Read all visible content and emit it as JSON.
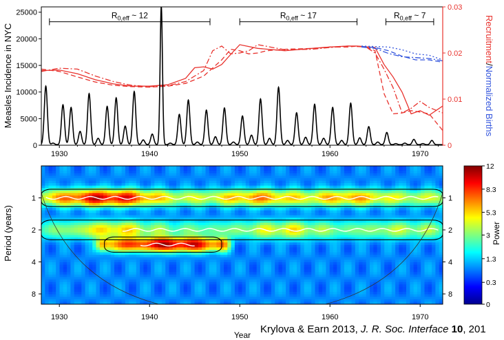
{
  "chart_data": [
    {
      "type": "line",
      "panel": "top",
      "xlim": [
        1928,
        1972.5
      ],
      "x_ticks": [
        "1930",
        "1940",
        "1950",
        "1960",
        "1970"
      ],
      "ylabel_left": "Measles Incidence in NYC",
      "ylim_left": [
        0,
        26000
      ],
      "y_ticks_left": [
        "0",
        "5000",
        "10000",
        "15000",
        "20000",
        "25000"
      ],
      "ylabel_right_parts": [
        {
          "text": "Recruitment",
          "color": "#e8322d"
        },
        {
          "text": "/",
          "color": "#000000"
        },
        {
          "text": "Normalized Births",
          "color": "#3355dd"
        }
      ],
      "ylim_right": [
        0,
        0.03
      ],
      "y_ticks_right": [
        "0",
        "0.01",
        "0.02",
        "0.03"
      ],
      "annotations": [
        {
          "label_main": "R",
          "label_sub": "0,eff",
          "label_rest": " ~ 12",
          "x_start": 1928.9,
          "x_end": 1946.7,
          "y": 23200
        },
        {
          "label_main": "R",
          "label_sub": "0,eff",
          "label_rest": " ~ 17",
          "x_start": 1950,
          "x_end": 1963,
          "y": 23200
        },
        {
          "label_main": "R",
          "label_sub": "0,eff",
          "label_rest": " ~ 7",
          "x_start": 1966.2,
          "x_end": 1971.5,
          "y": 23200
        }
      ],
      "incidence_series": {
        "name": "Measles incidence",
        "color": "#000000",
        "peaks": [
          {
            "x": 1928.5,
            "y": 11000
          },
          {
            "x": 1929.3,
            "y": 300
          },
          {
            "x": 1930.4,
            "y": 7500
          },
          {
            "x": 1931.3,
            "y": 7000
          },
          {
            "x": 1932.3,
            "y": 2500
          },
          {
            "x": 1933.3,
            "y": 9600
          },
          {
            "x": 1934.3,
            "y": 1200
          },
          {
            "x": 1935.3,
            "y": 7200
          },
          {
            "x": 1936.3,
            "y": 8800
          },
          {
            "x": 1937.3,
            "y": 3500
          },
          {
            "x": 1938.3,
            "y": 10000
          },
          {
            "x": 1939.3,
            "y": 900
          },
          {
            "x": 1940.3,
            "y": 2000
          },
          {
            "x": 1941.3,
            "y": 26000
          },
          {
            "x": 1942.3,
            "y": 300
          },
          {
            "x": 1943.3,
            "y": 5700
          },
          {
            "x": 1944.3,
            "y": 8400
          },
          {
            "x": 1945.3,
            "y": 500
          },
          {
            "x": 1946.3,
            "y": 6500
          },
          {
            "x": 1947.3,
            "y": 1500
          },
          {
            "x": 1948.3,
            "y": 6900
          },
          {
            "x": 1949.3,
            "y": 500
          },
          {
            "x": 1950.3,
            "y": 5400
          },
          {
            "x": 1951.3,
            "y": 1800
          },
          {
            "x": 1952.3,
            "y": 8600
          },
          {
            "x": 1953.3,
            "y": 1200
          },
          {
            "x": 1954.3,
            "y": 10800
          },
          {
            "x": 1955.3,
            "y": 800
          },
          {
            "x": 1956.3,
            "y": 6000
          },
          {
            "x": 1957.3,
            "y": 1400
          },
          {
            "x": 1958.3,
            "y": 7600
          },
          {
            "x": 1959.3,
            "y": 1200
          },
          {
            "x": 1960.3,
            "y": 7000
          },
          {
            "x": 1961.3,
            "y": 800
          },
          {
            "x": 1962.3,
            "y": 7800
          },
          {
            "x": 1963.3,
            "y": 1300
          },
          {
            "x": 1964.3,
            "y": 3400
          },
          {
            "x": 1965.3,
            "y": 500
          },
          {
            "x": 1966.3,
            "y": 2300
          },
          {
            "x": 1967.3,
            "y": 200
          },
          {
            "x": 1968.3,
            "y": 300
          },
          {
            "x": 1969.3,
            "y": 1000
          },
          {
            "x": 1970.3,
            "y": 200
          },
          {
            "x": 1971.3,
            "y": 800
          }
        ]
      },
      "recruitment_series": [
        {
          "name": "Recruitment (solid)",
          "color": "#e8322d",
          "dash": "solid",
          "x": [
            1928,
            1930,
            1932,
            1934,
            1936,
            1938,
            1940,
            1942,
            1944,
            1945,
            1946,
            1947,
            1948,
            1949,
            1950,
            1952,
            1955,
            1958,
            1960,
            1962,
            1963,
            1965,
            1966,
            1967,
            1968,
            1969,
            1970,
            1971,
            1972.5
          ],
          "y": [
            0.0162,
            0.0163,
            0.0155,
            0.0142,
            0.0133,
            0.0128,
            0.0128,
            0.0131,
            0.0145,
            0.0168,
            0.017,
            0.0165,
            0.0175,
            0.0197,
            0.0218,
            0.021,
            0.0205,
            0.021,
            0.0213,
            0.0215,
            0.0215,
            0.0212,
            0.0175,
            0.0148,
            0.0115,
            0.0068,
            0.0075,
            0.0065,
            0.0085
          ]
        },
        {
          "name": "Recruitment (dash-dot)",
          "color": "#e8322d",
          "dash": "dashdot",
          "x": [
            1928,
            1930,
            1932,
            1934,
            1936,
            1938,
            1940,
            1942,
            1944,
            1946,
            1947,
            1948,
            1949,
            1950,
            1951,
            1952,
            1955,
            1958,
            1960,
            1962,
            1964,
            1965,
            1966,
            1967,
            1968,
            1969,
            1970,
            1971,
            1972.5
          ],
          "y": [
            0.016,
            0.0167,
            0.0165,
            0.015,
            0.0138,
            0.013,
            0.0127,
            0.0129,
            0.0138,
            0.0162,
            0.0205,
            0.0215,
            0.0198,
            0.02,
            0.0205,
            0.0218,
            0.0207,
            0.0208,
            0.0212,
            0.0215,
            0.0213,
            0.02,
            0.0165,
            0.0125,
            0.007,
            0.008,
            0.0095,
            0.0082,
            0.007
          ]
        },
        {
          "name": "Recruitment (dashed)",
          "color": "#e8322d",
          "dash": "dashed",
          "x": [
            1928,
            1930,
            1932,
            1934,
            1936,
            1938,
            1940,
            1942,
            1944,
            1946,
            1948,
            1949,
            1950,
            1951,
            1952,
            1953,
            1955,
            1958,
            1960,
            1962,
            1963,
            1964,
            1965,
            1966,
            1967,
            1968,
            1969,
            1970,
            1971,
            1972.5
          ],
          "y": [
            0.0165,
            0.016,
            0.0148,
            0.0137,
            0.013,
            0.0127,
            0.0126,
            0.0128,
            0.0134,
            0.015,
            0.0185,
            0.0208,
            0.0205,
            0.0198,
            0.02,
            0.0205,
            0.0208,
            0.021,
            0.0213,
            0.0213,
            0.0215,
            0.0213,
            0.0205,
            0.0112,
            0.0068,
            0.007,
            0.0075,
            0.0072,
            0.0068,
            0.0032
          ]
        }
      ],
      "births_series": [
        {
          "name": "Normalized births (dashed)",
          "color": "#3355dd",
          "dash": "dashed",
          "x": [
            1963.5,
            1965,
            1966.5,
            1968,
            1969.5,
            1971,
            1972.5
          ],
          "y": [
            0.0214,
            0.0212,
            0.0205,
            0.0193,
            0.0185,
            0.0185,
            0.018
          ]
        },
        {
          "name": "Normalized births (dotted)",
          "color": "#3355dd",
          "dash": "dotted",
          "x": [
            1963.5,
            1965,
            1966.5,
            1968,
            1969.5,
            1971,
            1972.5
          ],
          "y": [
            0.0215,
            0.0214,
            0.0213,
            0.0207,
            0.0198,
            0.0195,
            0.0185
          ]
        },
        {
          "name": "Normalized births (dash-dot)",
          "color": "#3355dd",
          "dash": "dashdot",
          "x": [
            1963.5,
            1965,
            1966.5,
            1968,
            1969.5,
            1971,
            1972.5
          ],
          "y": [
            0.0213,
            0.021,
            0.0199,
            0.0192,
            0.019,
            0.0188,
            0.0183
          ]
        }
      ]
    },
    {
      "type": "heatmap",
      "panel": "bottom",
      "title": "",
      "xlabel": "Year",
      "ylabel": "Period (years)",
      "xlim": [
        1928,
        1972.5
      ],
      "x_ticks": [
        "1930",
        "1940",
        "1950",
        "1960",
        "1970"
      ],
      "y_scale": "log2",
      "ylim": [
        0.5,
        10
      ],
      "y_ticks": [
        "1",
        "2",
        "4",
        "8"
      ],
      "colorbar": {
        "label": "Power",
        "range": [
          0,
          12
        ],
        "ticks": [
          "0",
          "0.3",
          "1.3",
          "3",
          "5.3",
          "8.3",
          "12"
        ]
      },
      "power_bands": [
        {
          "period": 1,
          "x_start": 1928,
          "x_end": 1972.5,
          "base_power": 6.5,
          "width_octaves": 0.16,
          "hotspots": [
            {
              "x": 1933,
              "power": 8.5
            },
            {
              "x": 1937,
              "power": 8.8
            },
            {
              "x": 1952,
              "power": 7.0
            },
            {
              "x": 1962,
              "power": 6.5
            }
          ]
        },
        {
          "period": 2,
          "x_start": 1928,
          "x_end": 1972.5,
          "base_power": 4.0,
          "width_octaves": 0.18,
          "hotspots": [
            {
              "x": 1936,
              "power": 5.5
            },
            {
              "x": 1955,
              "power": 4.8
            },
            {
              "x": 1968,
              "power": 3.5
            }
          ]
        },
        {
          "period": 2.75,
          "x_start": 1935,
          "x_end": 1948,
          "base_power": 12.0,
          "width_octaves": 0.14,
          "hotspots": [
            {
              "x": 1942.5,
              "power": 12.0
            }
          ]
        }
      ],
      "ridge_lines": [
        {
          "period": 1.0,
          "x_start": 1928.5,
          "x_end": 1972
        },
        {
          "period": 2.0,
          "x_start": 1937,
          "x_end": 1972
        },
        {
          "period": 2.75,
          "x_start": 1939,
          "x_end": 1945
        }
      ]
    }
  ],
  "citation": {
    "authors": "Krylova & Earn 2013, ",
    "journal": "J. R. Soc. Interface",
    "volume": "10",
    "rest": ", 201"
  }
}
